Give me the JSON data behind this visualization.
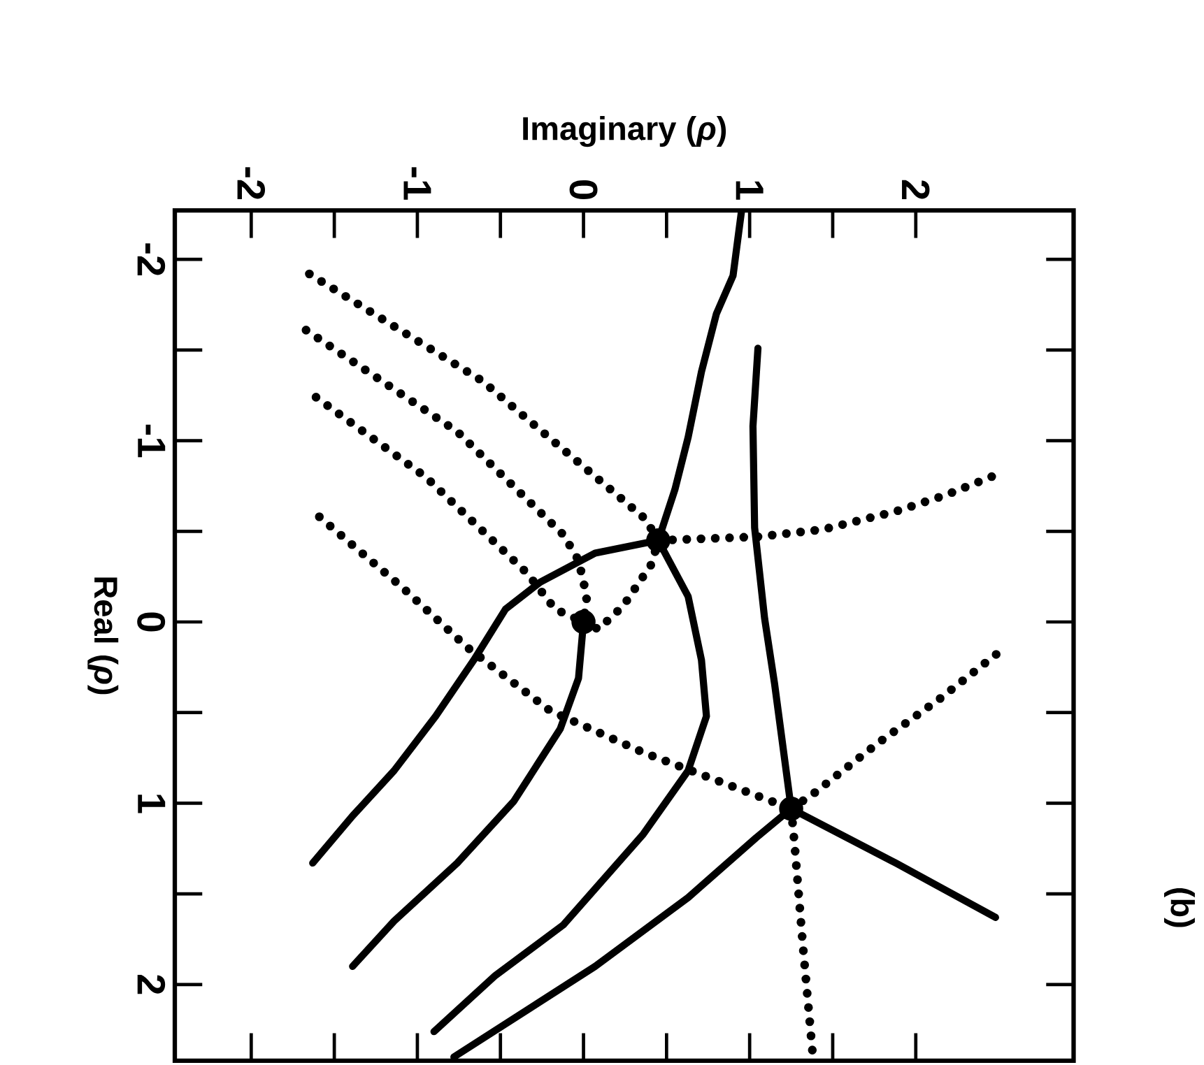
{
  "chart_data": {
    "type": "line",
    "xlabel": "Imaginary (*ρ*)",
    "ylabel": "Real (*ρ*)",
    "xlim": [
      -2.46,
      2.95
    ],
    "ylim": [
      2.42,
      -2.27
    ],
    "xticks": [
      -2,
      -1,
      0,
      1,
      2
    ],
    "yticks": [
      -2,
      -1,
      0,
      1,
      2
    ],
    "annotations": [
      "(b)"
    ],
    "series": [
      {
        "color": "#000000",
        "line_style": "solid",
        "x": [
          0.95,
          0.9,
          0.8,
          0.71,
          0.63,
          0.55,
          0.45
        ],
        "values": [
          -2.26,
          -1.91,
          -1.7,
          -1.38,
          -1.02,
          -0.73,
          -0.45
        ]
      },
      {
        "color": "#000000",
        "line_style": "solid",
        "x": [
          0.45,
          0.07,
          -0.26,
          -0.47,
          -0.66,
          -0.89,
          -1.14,
          -1.39,
          -1.63
        ],
        "values": [
          -0.45,
          -0.38,
          -0.22,
          -0.07,
          0.21,
          0.52,
          0.82,
          1.07,
          1.33
        ]
      },
      {
        "color": "#000000",
        "line_style": "solid",
        "x": [
          0.45,
          0.63,
          0.71,
          0.74,
          0.63,
          0.36,
          -0.12,
          -0.53,
          -0.9
        ],
        "values": [
          -0.45,
          -0.14,
          0.21,
          0.52,
          0.82,
          1.17,
          1.67,
          1.95,
          2.26
        ]
      },
      {
        "color": "#000000",
        "line_style": "solid",
        "x": [
          0,
          -0.03,
          -0.14,
          -0.42,
          -0.76,
          -1.14,
          -1.39
        ],
        "values": [
          0,
          0.31,
          0.59,
          0.99,
          1.33,
          1.65,
          1.9
        ]
      },
      {
        "color": "#000000",
        "line_style": "solid",
        "x": [
          -0.78,
          0.07,
          0.63,
          1.04,
          1.25
        ],
        "values": [
          2.4,
          1.9,
          1.52,
          1.19,
          1.03
        ]
      },
      {
        "color": "#000000",
        "line_style": "solid",
        "x": [
          1.25,
          1.88,
          2.48
        ],
        "values": [
          1.03,
          1.33,
          1.63
        ]
      },
      {
        "color": "#000000",
        "line_style": "solid",
        "x": [
          1.05,
          1.02,
          1.03,
          1.09,
          1.15,
          1.25
        ],
        "values": [
          -1.51,
          -1.08,
          -0.52,
          -0.02,
          0.34,
          1.03
        ]
      },
      {
        "color": "#000000",
        "line_style": "dotted",
        "x": [
          -1.65,
          -0.61,
          0.37,
          0.45
        ],
        "values": [
          -1.92,
          -1.33,
          -0.57,
          -0.45
        ]
      },
      {
        "color": "#000000",
        "line_style": "dotted",
        "x": [
          -1.67,
          -0.76,
          -0.12,
          -0.03,
          0.02,
          0
        ],
        "values": [
          -1.61,
          -1.05,
          -0.48,
          -0.34,
          -0.14,
          0
        ]
      },
      {
        "color": "#000000",
        "line_style": "dotted",
        "x": [
          -1.61,
          -0.95,
          -0.34,
          -0.17,
          0
        ],
        "values": [
          -1.24,
          -0.8,
          -0.27,
          -0.07,
          0
        ]
      },
      {
        "color": "#000000",
        "line_style": "dotted",
        "x": [
          0,
          0.09,
          0.24,
          0.41,
          0.45
        ],
        "values": [
          0,
          0.04,
          -0.09,
          -0.32,
          -0.45
        ]
      },
      {
        "color": "#000000",
        "line_style": "dotted",
        "x": [
          -1.59,
          -1.09,
          -0.7,
          -0.2,
          0.36,
          1.02,
          1.25
        ],
        "values": [
          -0.58,
          -0.19,
          0.14,
          0.49,
          0.72,
          0.95,
          1.03
        ]
      },
      {
        "color": "#000000",
        "line_style": "dotted",
        "x": [
          0.45,
          1.05,
          1.44,
          1.88,
          2.18,
          2.48
        ],
        "values": [
          -0.45,
          -0.47,
          -0.51,
          -0.61,
          -0.7,
          -0.81
        ]
      },
      {
        "color": "#000000",
        "line_style": "dotted",
        "x": [
          1.25,
          1.38,
          1.77,
          2.15,
          2.51
        ],
        "values": [
          1.03,
          0.95,
          0.67,
          0.42,
          0.16
        ]
      },
      {
        "color": "#000000",
        "line_style": "dotted",
        "x": [
          1.25,
          1.27,
          1.32,
          1.38
        ],
        "values": [
          1.03,
          1.22,
          1.78,
          2.39
        ]
      },
      {
        "type": "scatter",
        "marker": "circle",
        "color": "#000000",
        "x": [
          0.45,
          0,
          1.25
        ],
        "values": [
          -0.45,
          0,
          1.03
        ]
      }
    ]
  }
}
